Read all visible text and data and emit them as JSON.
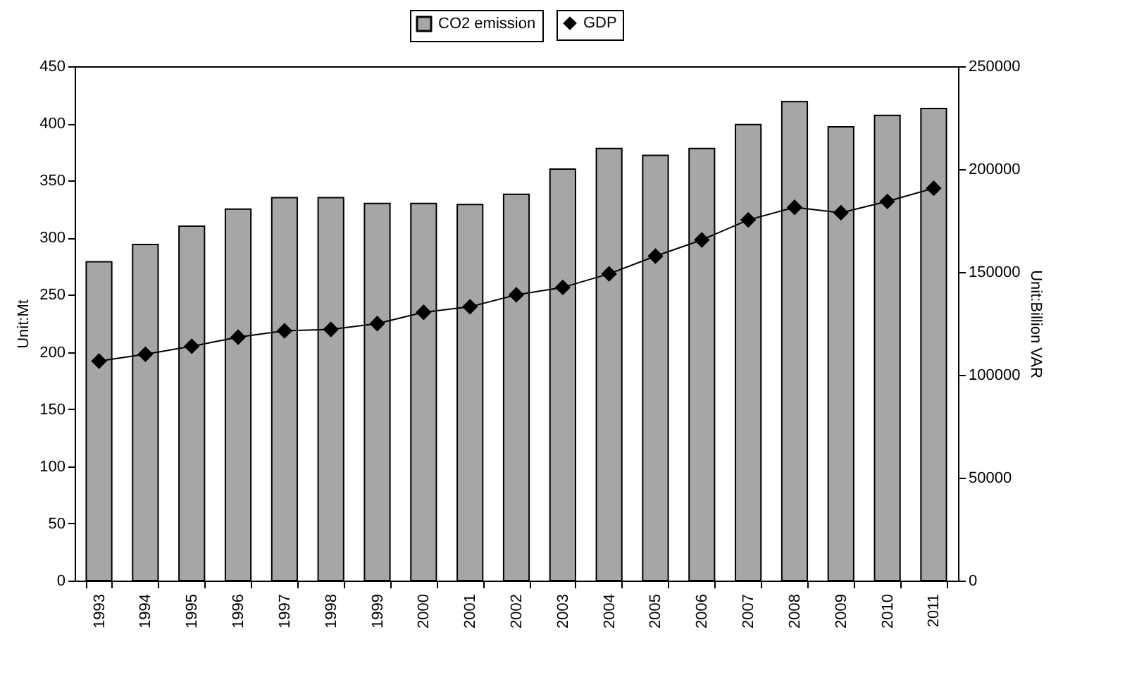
{
  "chart_data": {
    "type": "bar",
    "categories": [
      "1993",
      "1994",
      "1995",
      "1996",
      "1997",
      "1998",
      "1999",
      "2000",
      "2001",
      "2002",
      "2003",
      "2004",
      "2005",
      "2006",
      "2007",
      "2008",
      "2009",
      "2010",
      "2011"
    ],
    "series": [
      {
        "name": "CO2 emission",
        "color": "#a6a6a6",
        "values": [
          279,
          294,
          310,
          325,
          335,
          335,
          330,
          330,
          329,
          338,
          360,
          378,
          372,
          378,
          399,
          419,
          397,
          407,
          413
        ]
      },
      {
        "name": "GDP",
        "type": "line",
        "axis": "y2",
        "color": "#000000",
        "values": [
          106700,
          110000,
          113900,
          118300,
          121400,
          122100,
          124900,
          130400,
          133100,
          138900,
          142500,
          149100,
          157700,
          165600,
          175300,
          181400,
          178800,
          184300,
          190700
        ]
      }
    ],
    "ylabel": "Unit:Mt",
    "y2label": "Unit:Billion VAR",
    "ylim": [
      0,
      450
    ],
    "yticks": [
      0,
      50,
      100,
      150,
      200,
      250,
      300,
      350,
      400,
      450
    ],
    "y2lim": [
      0,
      250000
    ],
    "y2ticks": [
      0,
      50000,
      100000,
      150000,
      200000,
      250000
    ],
    "grid": false,
    "legend": "top",
    "marker": "diamond",
    "line_style": "solid"
  }
}
